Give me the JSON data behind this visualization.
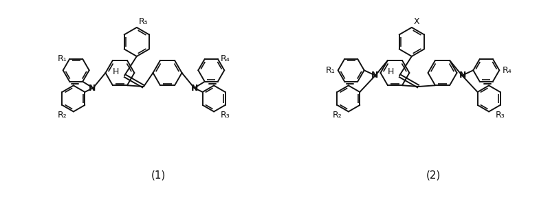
{
  "bg_color": "#ffffff",
  "line_color": "#111111",
  "line_width": 1.4,
  "fig_width": 8.0,
  "fig_height": 2.94,
  "dpi": 100,
  "label1": "(1)",
  "label2": "(2)",
  "R1": "R₁",
  "R2": "R₂",
  "R3": "R₃",
  "R4": "R₄",
  "R5": "R₅",
  "X": "X",
  "H": "H",
  "N": "N"
}
